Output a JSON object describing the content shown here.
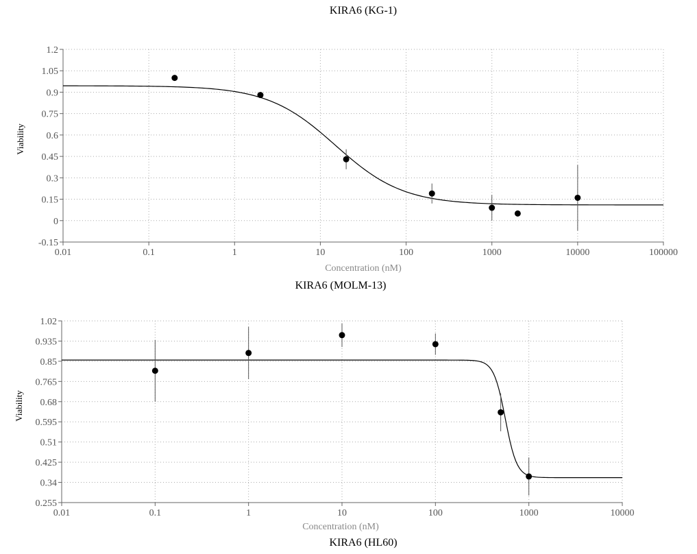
{
  "chart_data": [
    {
      "type": "scatter",
      "title": "KIRA6 (KG-1)",
      "xlabel": "Concentration (nM)",
      "ylabel": "Viability",
      "xscale": "log",
      "xlim": [
        0.01,
        100000
      ],
      "ylim": [
        -0.15,
        1.2
      ],
      "xticks": [
        "0.01",
        "0.1",
        "1",
        "10",
        "100",
        "1000",
        "10000",
        "100000"
      ],
      "yticks": [
        "-0.15",
        "0",
        "0.15",
        "0.3",
        "0.45",
        "0.6",
        "0.75",
        "0.9",
        "1.05",
        "1.2"
      ],
      "grid": true,
      "points": [
        {
          "x": 0.2,
          "y": 1.0,
          "err": 0
        },
        {
          "x": 2,
          "y": 0.88,
          "err": 0.02
        },
        {
          "x": 20,
          "y": 0.43,
          "err": 0.07
        },
        {
          "x": 200,
          "y": 0.19,
          "err": 0.07
        },
        {
          "x": 1000,
          "y": 0.09,
          "err": 0.09
        },
        {
          "x": 2000,
          "y": 0.05,
          "err": 0
        },
        {
          "x": 10000,
          "y": 0.16,
          "err": 0.23
        }
      ],
      "fit": {
        "top": 0.945,
        "bottom": 0.11,
        "ec50": 15,
        "hill": 1.1,
        "x_range": [
          0.01,
          100000
        ]
      }
    },
    {
      "type": "scatter",
      "title": "KIRA6 (MOLM-13)",
      "xlabel": "Concentration (nM)",
      "ylabel": "Viability",
      "xscale": "log",
      "xlim": [
        0.01,
        10000
      ],
      "ylim": [
        0.255,
        1.02
      ],
      "xticks": [
        "0.01",
        "0.1",
        "1",
        "10",
        "100",
        "1000",
        "10000"
      ],
      "yticks": [
        "0.255",
        "0.34",
        "0.425",
        "0.51",
        "0.595",
        "0.68",
        "0.765",
        "0.85",
        "0.935",
        "1.02"
      ],
      "grid": true,
      "points": [
        {
          "x": 0.1,
          "y": 0.81,
          "err": 0.13
        },
        {
          "x": 1,
          "y": 0.885,
          "err": 0.11
        },
        {
          "x": 10,
          "y": 0.96,
          "err": 0.05
        },
        {
          "x": 100,
          "y": 0.922,
          "err": 0.045
        },
        {
          "x": 500,
          "y": 0.635,
          "err": 0.08
        },
        {
          "x": 1000,
          "y": 0.365,
          "err": 0.08
        }
      ],
      "fit": {
        "top": 0.855,
        "bottom": 0.36,
        "ec50": 560,
        "hill": 7,
        "x_range": [
          0.01,
          10000
        ]
      }
    },
    {
      "type": "scatter",
      "title": "KIRA6 (HL60)"
    }
  ]
}
